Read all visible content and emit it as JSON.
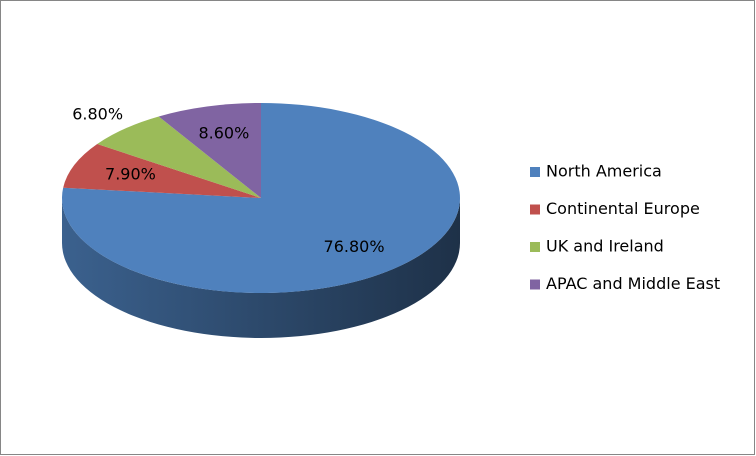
{
  "chart_data": {
    "type": "pie3d",
    "categories": [
      "North America",
      "Continental Europe",
      "UK and Ireland",
      "APAC and Middle East"
    ],
    "values": [
      76.8,
      7.9,
      6.8,
      8.6
    ],
    "value_labels": [
      "76.80%",
      "7.90%",
      "6.80%",
      "8.60%"
    ],
    "colors": [
      "#4f81bd",
      "#c0504d",
      "#9bbb59",
      "#8064a2"
    ],
    "legend": "right"
  }
}
